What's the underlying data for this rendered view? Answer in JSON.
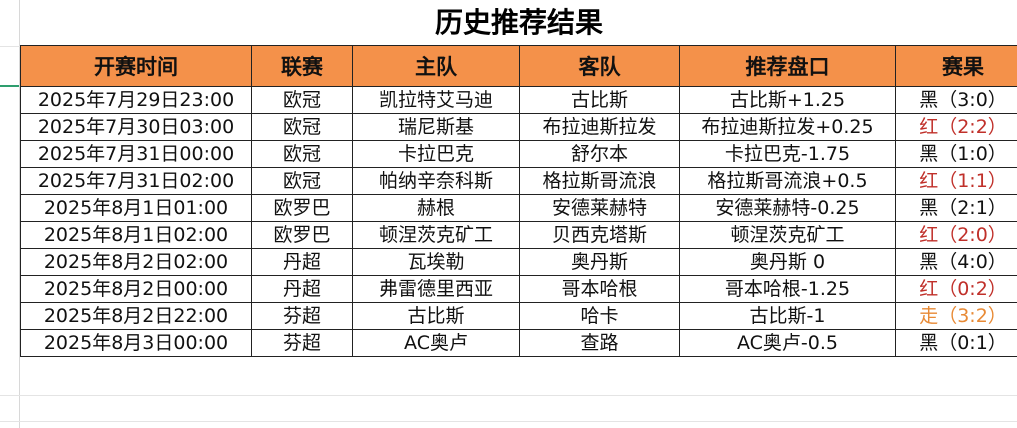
{
  "title": "历史推荐结果",
  "headers": [
    "开赛时间",
    "联赛",
    "主队",
    "客队",
    "推荐盘口",
    "赛果"
  ],
  "rows": [
    {
      "time": "2025年7月29日23:00",
      "league": "欧冠",
      "home": "凯拉特艾马迪",
      "away": "古比斯",
      "pick": "古比斯+1.25",
      "result": "黑（3:0）",
      "status": "black"
    },
    {
      "time": "2025年7月30日03:00",
      "league": "欧冠",
      "home": "瑞尼斯基",
      "away": "布拉迪斯拉发",
      "pick": "布拉迪斯拉发+0.25",
      "result": "红（2:2）",
      "status": "red"
    },
    {
      "time": "2025年7月31日00:00",
      "league": "欧冠",
      "home": "卡拉巴克",
      "away": "舒尔本",
      "pick": "卡拉巴克-1.75",
      "result": "黑（1:0）",
      "status": "black"
    },
    {
      "time": "2025年7月31日02:00",
      "league": "欧冠",
      "home": "帕纳辛奈科斯",
      "away": "格拉斯哥流浪",
      "pick": "格拉斯哥流浪+0.5",
      "result": "红（1:1）",
      "status": "red"
    },
    {
      "time": "2025年8月1日01:00",
      "league": "欧罗巴",
      "home": "赫根",
      "away": "安德莱赫特",
      "pick": "安德莱赫特-0.25",
      "result": "黑（2:1）",
      "status": "black"
    },
    {
      "time": "2025年8月1日02:00",
      "league": "欧罗巴",
      "home": "顿涅茨克矿工",
      "away": "贝西克塔斯",
      "pick": "顿涅茨克矿工",
      "result": "红（2:0）",
      "status": "red"
    },
    {
      "time": "2025年8月2日02:00",
      "league": "丹超",
      "home": "瓦埃勒",
      "away": "奥丹斯",
      "pick": "奥丹斯 0",
      "result": "黑（4:0）",
      "status": "black"
    },
    {
      "time": "2025年8月2日00:00",
      "league": "丹超",
      "home": "弗雷德里西亚",
      "away": "哥本哈根",
      "pick": "哥本哈根-1.25",
      "result": "红（0:2）",
      "status": "red"
    },
    {
      "time": "2025年8月2日22:00",
      "league": "芬超",
      "home": "古比斯",
      "away": "哈卡",
      "pick": "古比斯-1",
      "result": "走（3:2）",
      "status": "orange"
    },
    {
      "time": "2025年8月3日00:00",
      "league": "芬超",
      "home": "AC奥卢",
      "away": "查路",
      "pick": "AC奥卢-0.5",
      "result": "黑（0:1）",
      "status": "black"
    }
  ],
  "colors": {
    "header": "#f4914a",
    "black": "#111111",
    "red": "#c0302a",
    "orange": "#e88a35",
    "selection": "#2e9e6e"
  }
}
